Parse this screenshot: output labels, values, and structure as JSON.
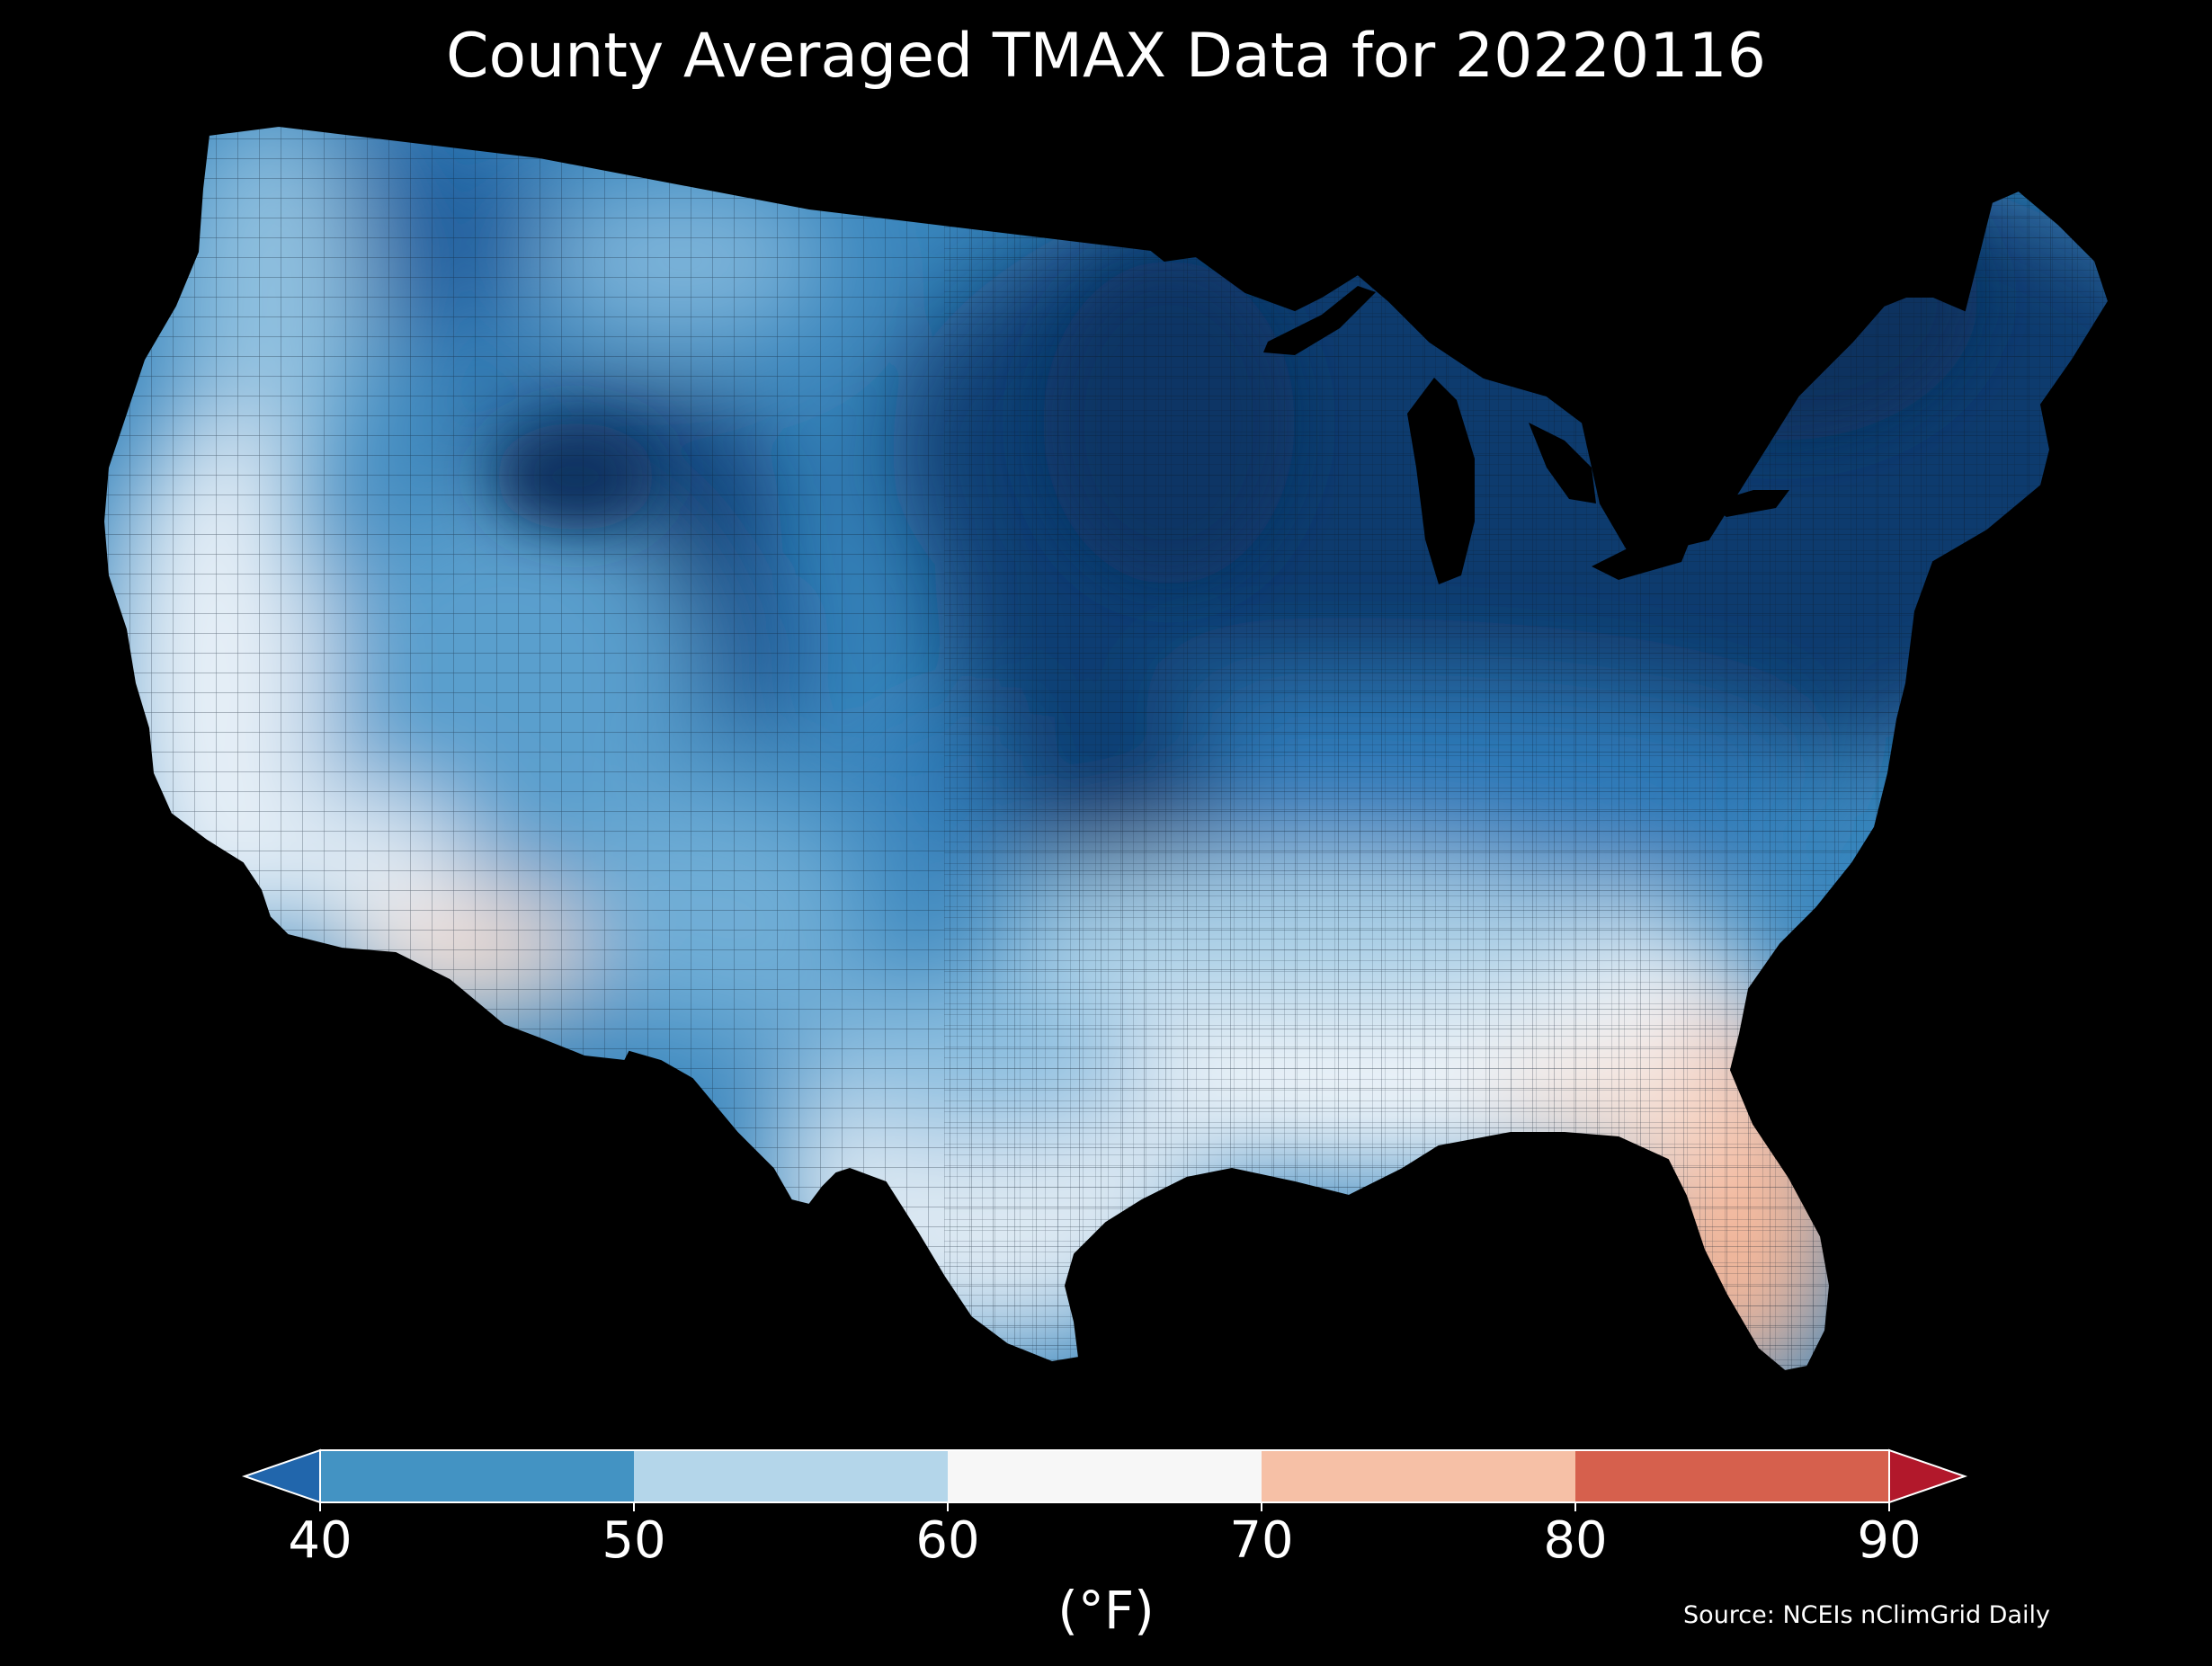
{
  "title": "County Averaged TMAX Data for 20220116",
  "legend": {
    "unit": "(°F)",
    "ticks": [
      "40",
      "50",
      "60",
      "70",
      "80",
      "90"
    ],
    "under_color": "#2166ac",
    "over_color": "#b2182b",
    "bins": [
      {
        "from": 40,
        "to": 50,
        "color": "#4393c3"
      },
      {
        "from": 50,
        "to": 60,
        "color": "#b4d6ea"
      },
      {
        "from": 60,
        "to": 70,
        "color": "#f7f7f7"
      },
      {
        "from": 70,
        "to": 80,
        "color": "#f6c0a6"
      },
      {
        "from": 80,
        "to": 90,
        "color": "#d6604d"
      }
    ]
  },
  "source": "Source: NCEIs nClimGrid Daily",
  "map": {
    "region": "Contiguous United States counties",
    "background_color": "#000000",
    "border_color": "#000000"
  }
}
